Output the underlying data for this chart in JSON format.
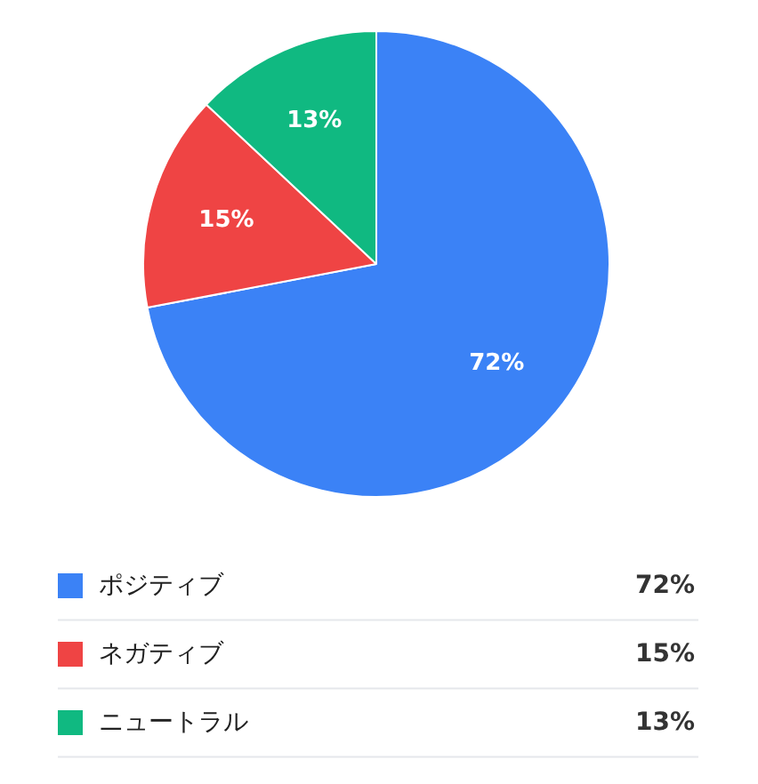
{
  "chart_data": {
    "type": "pie",
    "categories": [
      "ポジティブ",
      "ネガティブ",
      "ニュートラル"
    ],
    "values": [
      72,
      15,
      13
    ],
    "value_labels": [
      "72%",
      "15%",
      "13%"
    ],
    "colors": [
      "#3b82f6",
      "#ef4444",
      "#10b981"
    ],
    "legend": "bottom"
  }
}
